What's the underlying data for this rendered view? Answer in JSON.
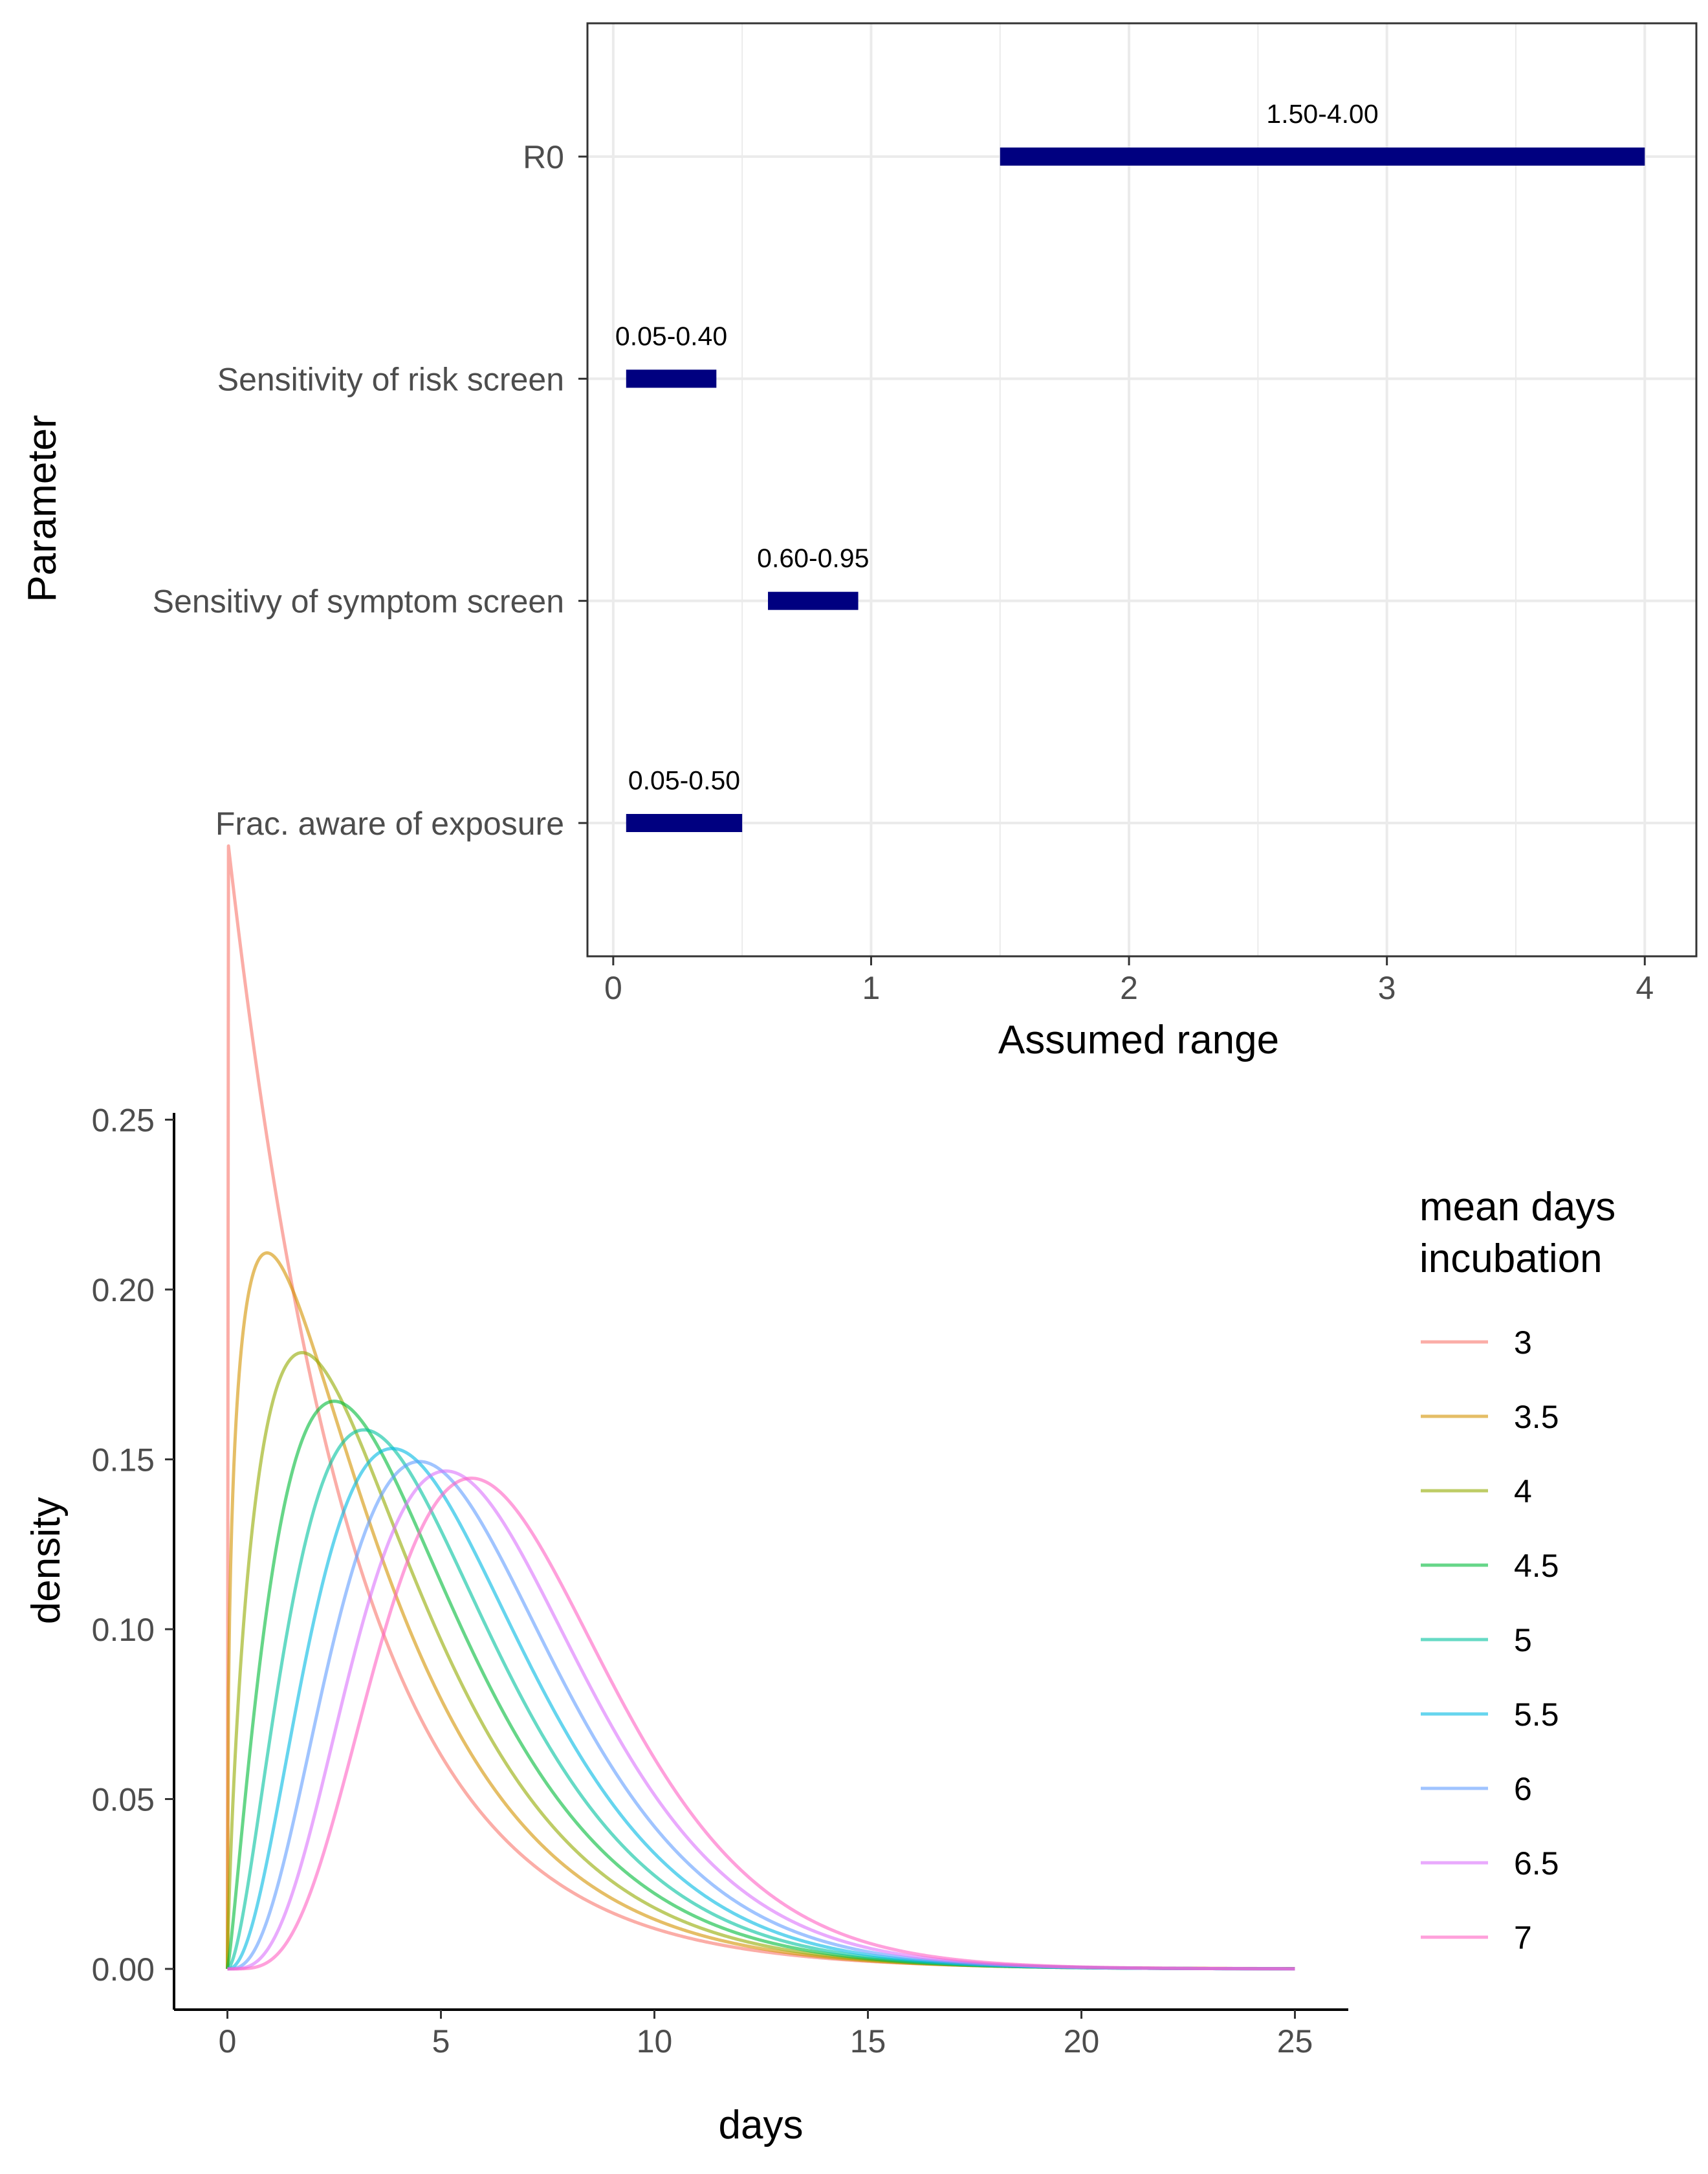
{
  "chart_data": [
    {
      "type": "bar",
      "orientation": "horizontal-range",
      "xlabel": "Assumed range",
      "ylabel": "Parameter",
      "xlim": [
        -0.1,
        4.2
      ],
      "xticks": [
        0,
        1,
        2,
        3,
        4
      ],
      "grid": true,
      "bar_color": "#000080",
      "categories": [
        "R0",
        "Sensitivity of risk screen",
        "Sensitivy of symptom screen",
        "Frac. aware of exposure"
      ],
      "ranges": [
        {
          "category": "R0",
          "low": 1.5,
          "high": 4.0,
          "label": "1.50-4.00"
        },
        {
          "category": "Sensitivity of risk screen",
          "low": 0.05,
          "high": 0.4,
          "label": "0.05-0.40"
        },
        {
          "category": "Sensitivy of symptom screen",
          "low": 0.6,
          "high": 0.95,
          "label": "0.60-0.95"
        },
        {
          "category": "Frac. aware of exposure",
          "low": 0.05,
          "high": 0.5,
          "label": "0.05-0.50"
        }
      ]
    },
    {
      "type": "line",
      "xlabel": "days",
      "ylabel": "density",
      "xlim": [
        -1.25,
        26.25
      ],
      "ylim": [
        -0.012,
        0.252
      ],
      "xticks": [
        0,
        5,
        10,
        15,
        20,
        25
      ],
      "yticks": [
        0.0,
        0.05,
        0.1,
        0.15,
        0.2,
        0.25
      ],
      "ytick_labels": [
        "0.00",
        "0.05",
        "0.10",
        "0.15",
        "0.20",
        "0.25"
      ],
      "grid": false,
      "legend_title": "mean days\nincubation",
      "legend_title_lines": [
        "mean days",
        "incubation"
      ],
      "legend_position": "right",
      "distribution": "gamma",
      "gamma_sd": 3,
      "x_range": [
        0,
        25
      ],
      "series": [
        {
          "name": "3",
          "mean": 3,
          "color": "#F8766D"
        },
        {
          "name": "3.5",
          "mean": 3.5,
          "color": "#D39200"
        },
        {
          "name": "4",
          "mean": 4,
          "color": "#93AA00"
        },
        {
          "name": "4.5",
          "mean": 4.5,
          "color": "#00BA38"
        },
        {
          "name": "5",
          "mean": 5,
          "color": "#00C19F"
        },
        {
          "name": "5.5",
          "mean": 5.5,
          "color": "#00B9E3"
        },
        {
          "name": "6",
          "mean": 6,
          "color": "#619CFF"
        },
        {
          "name": "6.5",
          "mean": 6.5,
          "color": "#DB72FB"
        },
        {
          "name": "7",
          "mean": 7,
          "color": "#FF61C3"
        }
      ]
    }
  ]
}
